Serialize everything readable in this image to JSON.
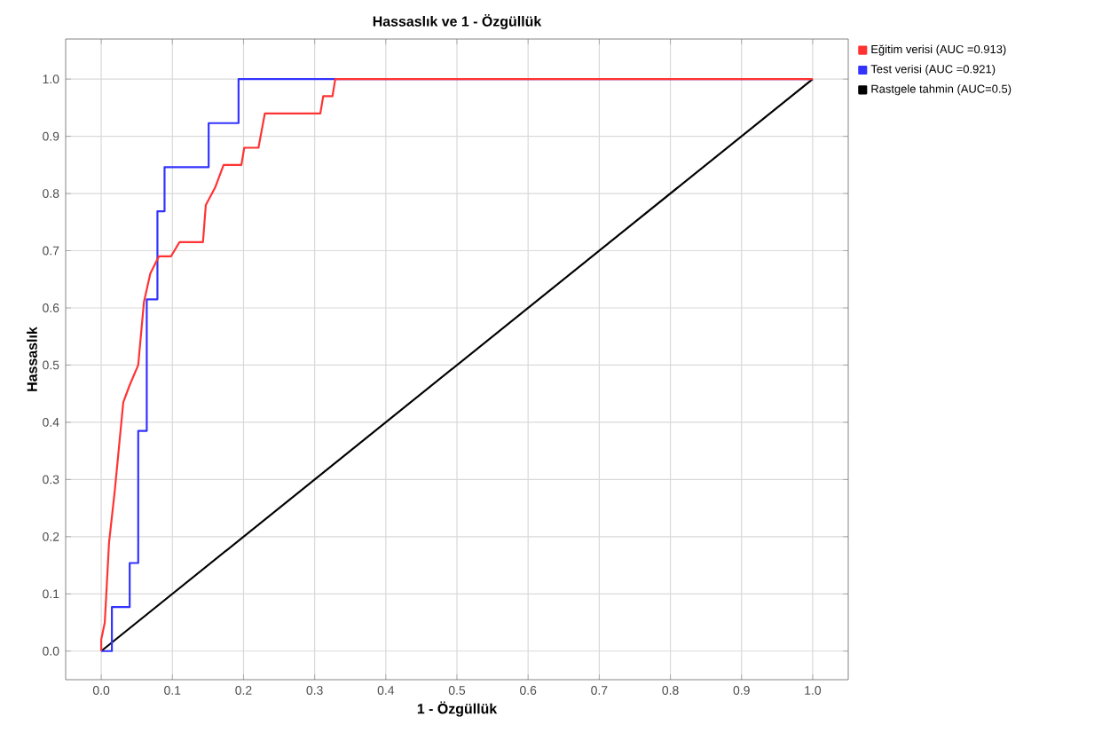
{
  "chart_data": {
    "type": "line",
    "title": "Hassaslık ve 1 - Özgüllük",
    "xlabel": "1 - Özgüllük",
    "ylabel": "Hassaslık",
    "xlim": [
      -0.05,
      1.05
    ],
    "ylim": [
      -0.05,
      1.07
    ],
    "xticks": [
      {
        "value": 0,
        "label": "0.0"
      },
      0.1,
      0.2,
      0.3,
      0.4,
      0.5,
      0.6,
      0.7,
      0.8,
      0.9,
      {
        "value": 1,
        "label": "1.0"
      }
    ],
    "yticks": [
      {
        "value": 0,
        "label": "0.0"
      },
      0.1,
      0.2,
      0.3,
      0.4,
      0.5,
      0.6,
      0.7,
      0.8,
      0.9,
      {
        "value": 1,
        "label": "1.0"
      }
    ],
    "grid": true,
    "legend": "top right",
    "marker": "none",
    "line_style": "solid",
    "series": [
      {
        "name": "Eğitim verisi (AUC =0.913)",
        "color": "#ff3333",
        "x": [
          0,
          0,
          0.005,
          0.011,
          0.019,
          0.031,
          0.04,
          0.052,
          0.06,
          0.069,
          0.081,
          0.098,
          0.11,
          0.143,
          0.147,
          0.16,
          0.172,
          0.197,
          0.201,
          0.221,
          0.23,
          0.308,
          0.312,
          0.325,
          0.329,
          1
        ],
        "values": [
          0,
          0.02,
          0.05,
          0.19,
          0.28,
          0.435,
          0.465,
          0.5,
          0.61,
          0.66,
          0.69,
          0.69,
          0.715,
          0.715,
          0.78,
          0.81,
          0.85,
          0.85,
          0.88,
          0.88,
          0.94,
          0.94,
          0.97,
          0.97,
          1,
          1
        ]
      },
      {
        "name": "Test verisi (AUC =0.921)",
        "color": "#3333ff",
        "x": [
          0,
          0.015,
          0.015,
          0.04,
          0.04,
          0.052,
          0.052,
          0.064,
          0.064,
          0.079,
          0.079,
          0.089,
          0.089,
          0.151,
          0.151,
          0.193,
          0.193,
          1
        ],
        "values": [
          0,
          0,
          0.077,
          0.077,
          0.154,
          0.154,
          0.385,
          0.385,
          0.615,
          0.615,
          0.769,
          0.769,
          0.846,
          0.846,
          0.923,
          0.923,
          1,
          1
        ]
      },
      {
        "name": "Rastgele tahmin (AUC=0.5)",
        "color": "#000000",
        "x": [
          0,
          1
        ],
        "values": [
          0,
          1
        ]
      }
    ]
  }
}
